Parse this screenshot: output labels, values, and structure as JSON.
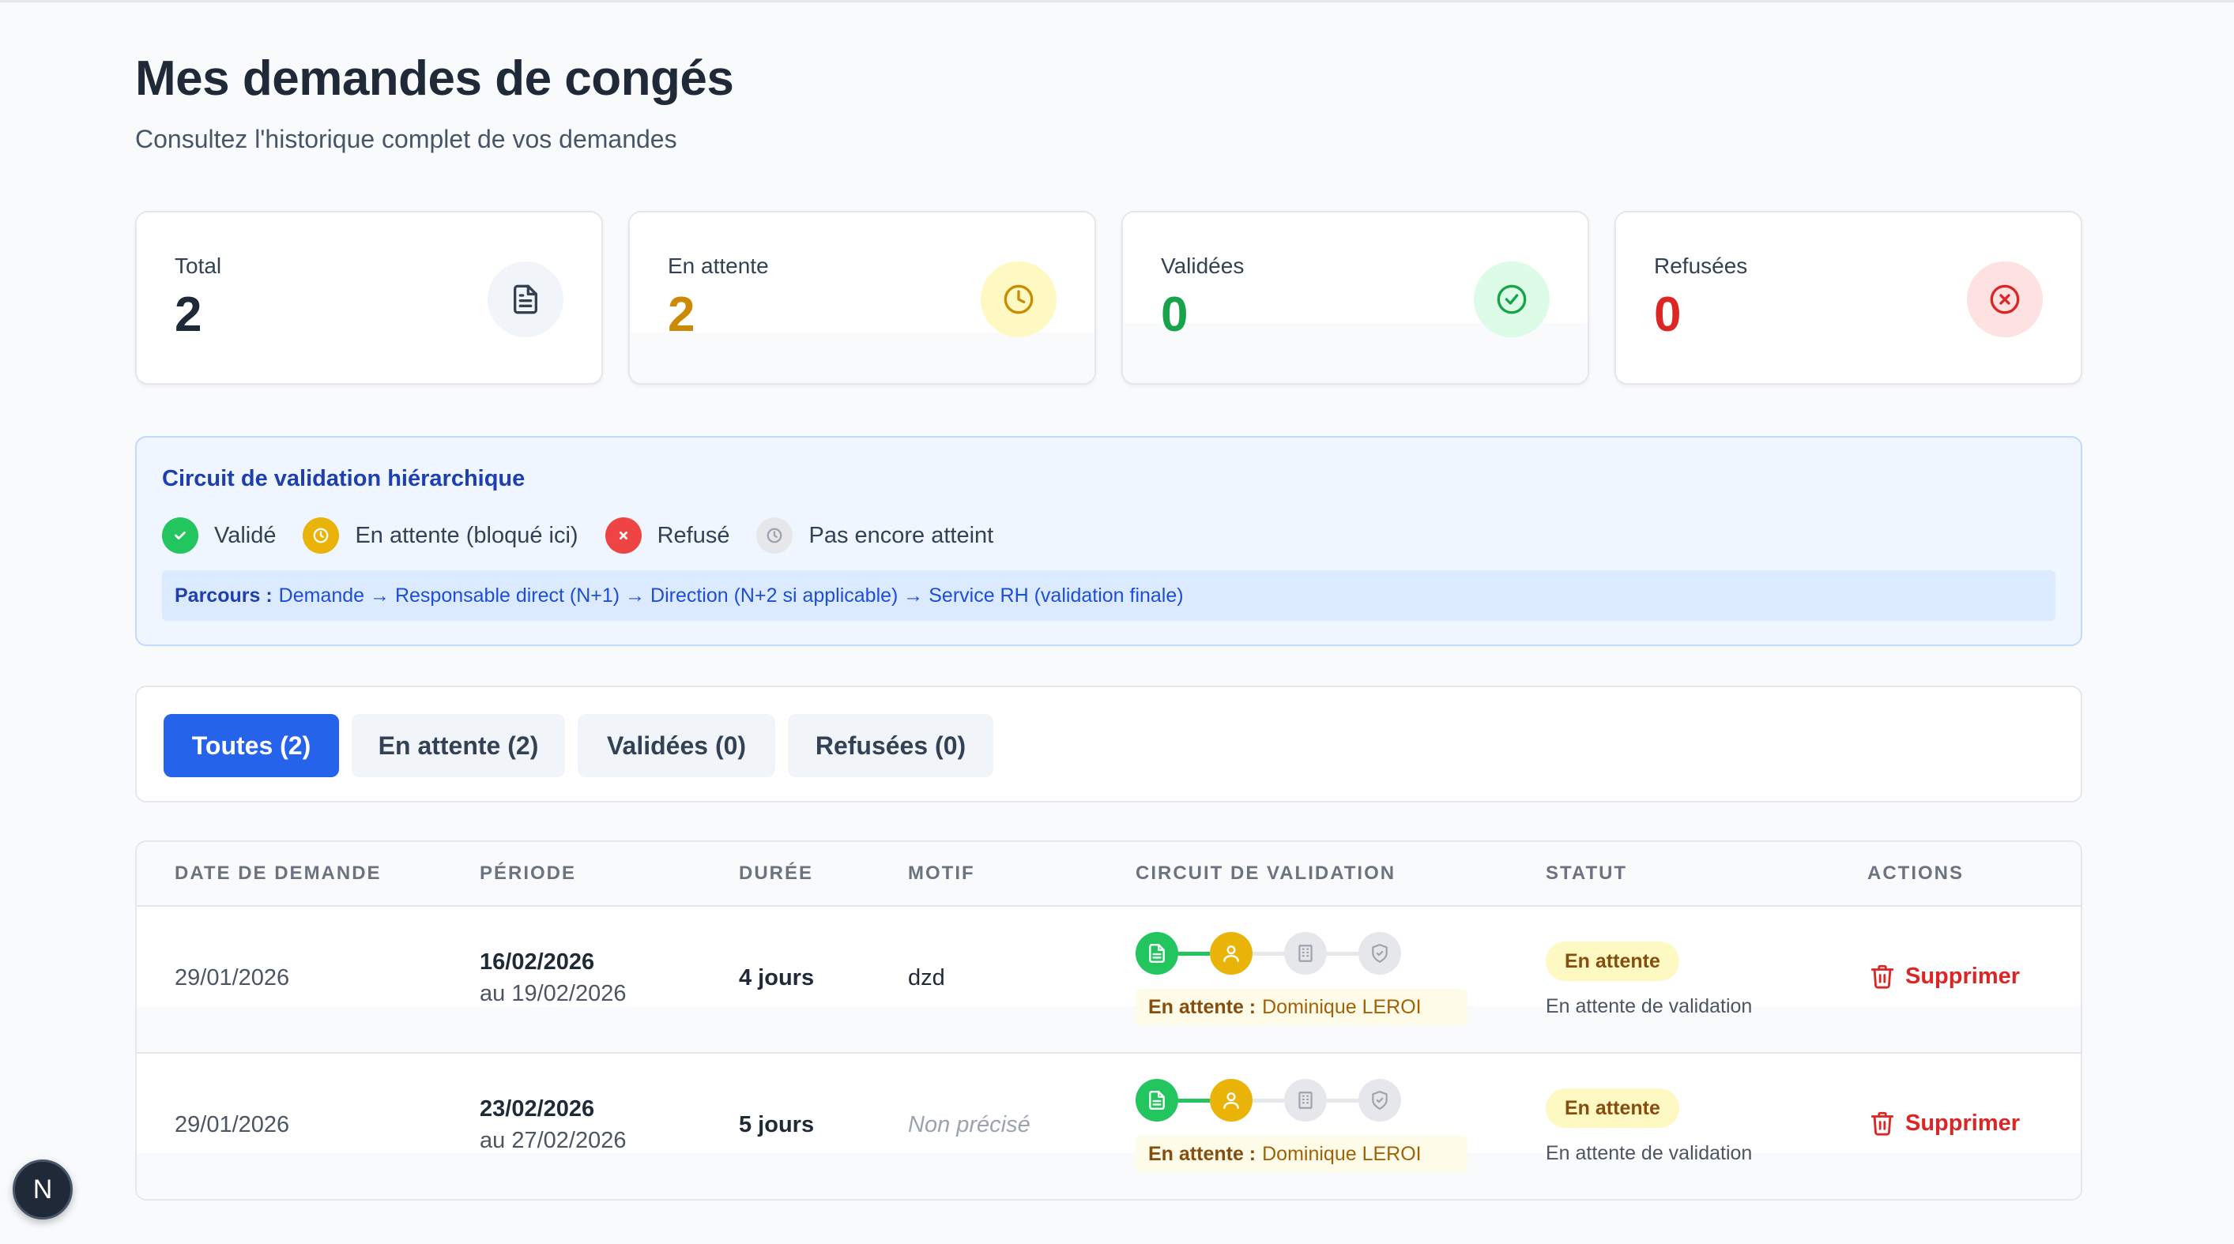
{
  "page": {
    "title": "Mes demandes de congés",
    "subtitle": "Consultez l'historique complet de vos demandes"
  },
  "stats": [
    {
      "label": "Total",
      "value": "2",
      "icon": "document-icon",
      "color": "#1f2937",
      "bg": "#f1f5f9"
    },
    {
      "label": "En attente",
      "value": "2",
      "icon": "clock-icon",
      "color": "#ca8a04",
      "bg": "#fef9c3"
    },
    {
      "label": "Validées",
      "value": "0",
      "icon": "check-circle-icon",
      "color": "#16a34a",
      "bg": "#dcfce7"
    },
    {
      "label": "Refusées",
      "value": "0",
      "icon": "x-circle-icon",
      "color": "#dc2626",
      "bg": "#fee2e2"
    }
  ],
  "legend": {
    "title": "Circuit de validation hiérarchique",
    "items": [
      {
        "label": "Validé",
        "icon": "check-icon",
        "color": "#22c55e"
      },
      {
        "label": "En attente (bloqué ici)",
        "icon": "clock-icon",
        "color": "#eab308"
      },
      {
        "label": "Refusé",
        "icon": "x-icon",
        "color": "#ef4444"
      },
      {
        "label": "Pas encore atteint",
        "icon": "clock-icon",
        "color": "#e5e7eb"
      }
    ],
    "path_label": "Parcours :",
    "path_text": "Demande → Responsable direct (N+1) → Direction (N+2 si applicable) → Service RH (validation finale)"
  },
  "filters": [
    {
      "label": "Toutes (2)",
      "active": true
    },
    {
      "label": "En attente (2)",
      "active": false
    },
    {
      "label": "Validées (0)",
      "active": false
    },
    {
      "label": "Refusées (0)",
      "active": false
    }
  ],
  "table": {
    "headers": {
      "date": "DATE DE DEMANDE",
      "period": "PÉRIODE",
      "duration": "DURÉE",
      "motif": "MOTIF",
      "circuit": "CIRCUIT DE VALIDATION",
      "status": "STATUT",
      "actions": "ACTIONS"
    },
    "rows": [
      {
        "date": "29/01/2026",
        "period_start": "16/02/2026",
        "period_end": "au 19/02/2026",
        "duration": "4 jours",
        "motif": "dzd",
        "circuit_label": "En attente :",
        "circuit_person": "Dominique LEROI",
        "status": "En attente",
        "status_sub": "En attente de validation",
        "action": "Supprimer"
      },
      {
        "date": "29/01/2026",
        "period_start": "23/02/2026",
        "period_end": "au 27/02/2026",
        "duration": "5 jours",
        "motif": "Non précisé",
        "circuit_label": "En attente :",
        "circuit_person": "Dominique LEROI",
        "status": "En attente",
        "status_sub": "En attente de validation",
        "action": "Supprimer"
      }
    ]
  },
  "dev_badge": "N"
}
